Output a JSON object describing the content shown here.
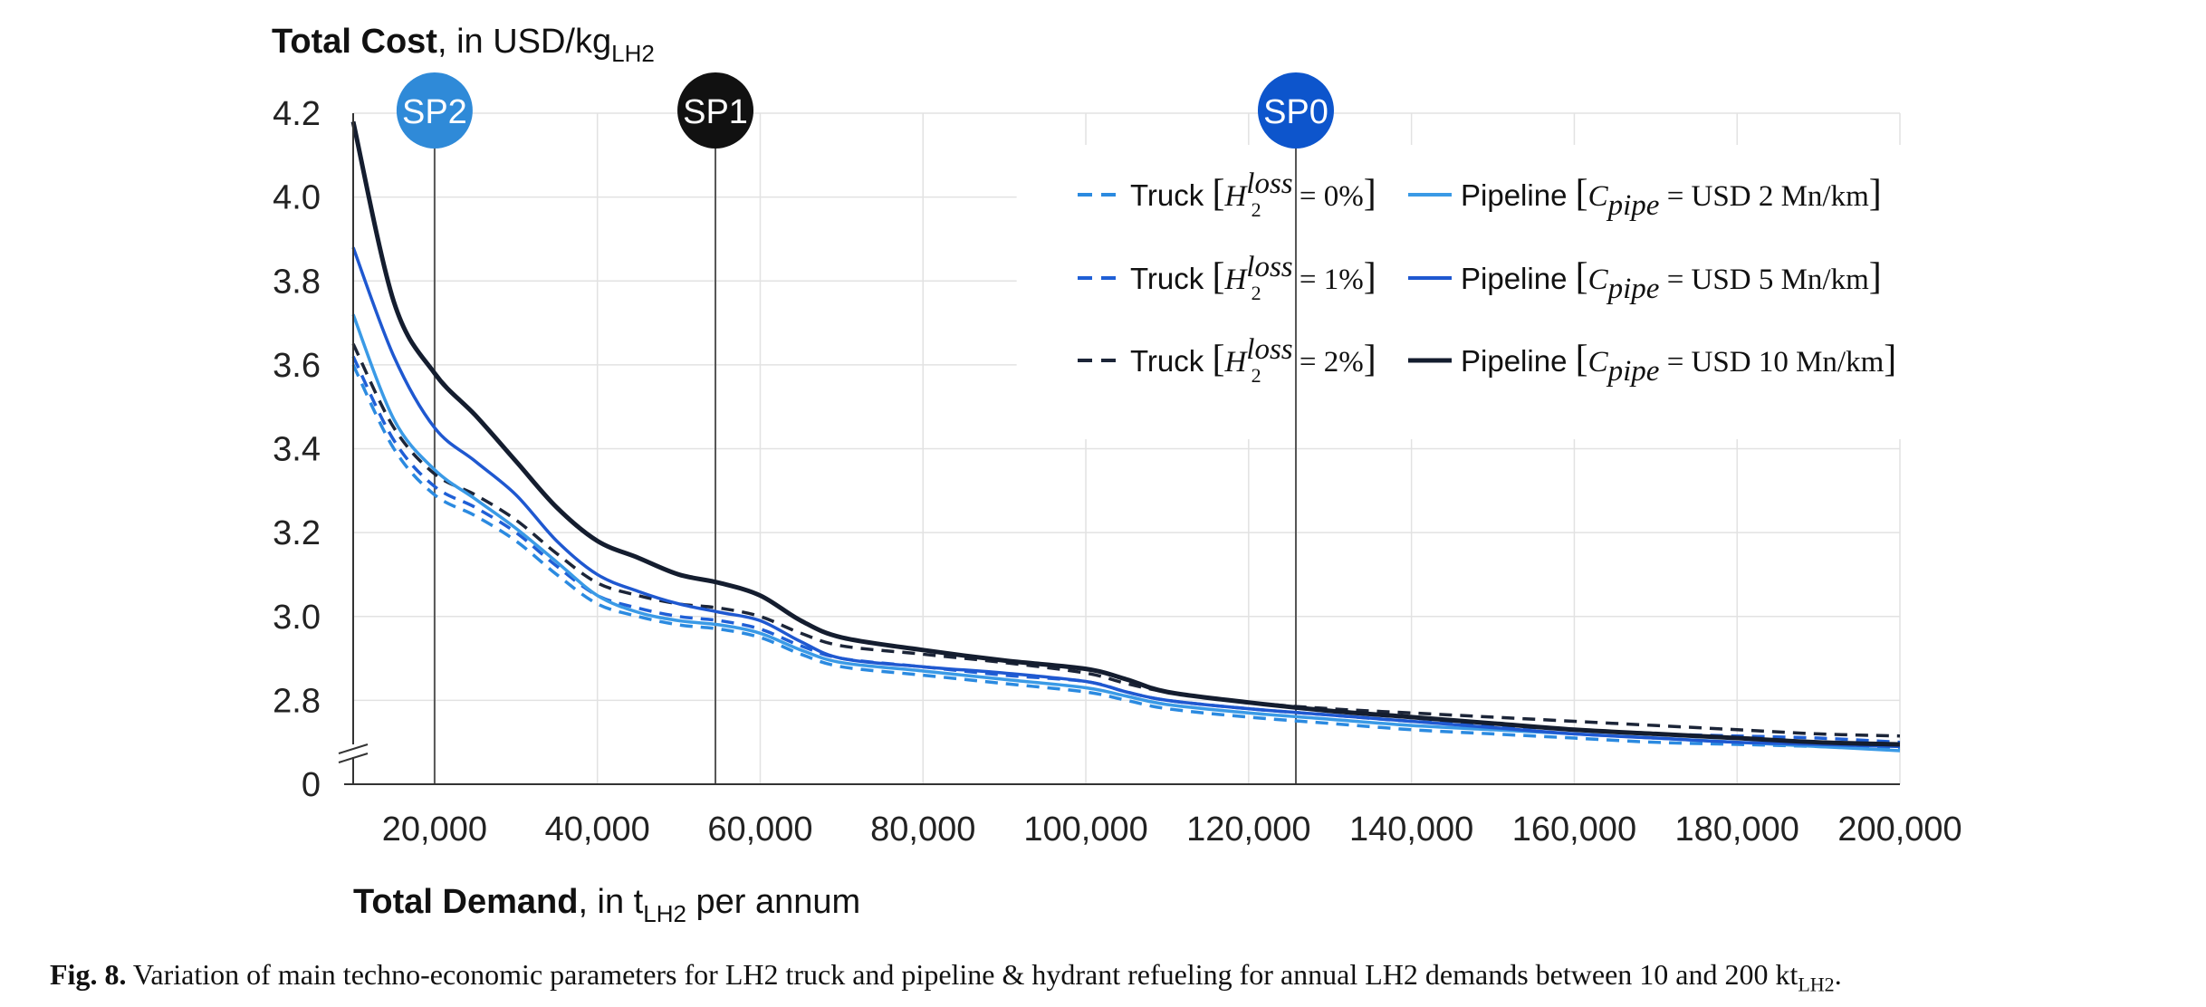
{
  "chart_data": {
    "type": "line",
    "ylabel_bold": "Total Cost",
    "ylabel_rest": ", in USD/kg",
    "ylabel_sub": "LH2",
    "xlabel_bold": "Total Demand",
    "xlabel_rest": ", in t",
    "xlabel_sub": "LH2",
    "xlabel_tail": " per annum",
    "xlim": [
      10000,
      200000
    ],
    "ylim": [
      2.6,
      4.2
    ],
    "y_axis_break": true,
    "y_ticks": [
      "0",
      "2.8",
      "3.0",
      "3.2",
      "3.4",
      "3.6",
      "3.8",
      "4.0",
      "4.2"
    ],
    "y_tick_values": [
      2.6,
      2.8,
      3.0,
      3.2,
      3.4,
      3.6,
      3.8,
      4.0,
      4.2
    ],
    "x_ticks": [
      "20,000",
      "40,000",
      "60,000",
      "80,000",
      "100,000",
      "120,000",
      "140,000",
      "160,000",
      "180,000",
      "200,000"
    ],
    "x_tick_values": [
      20000,
      40000,
      60000,
      80000,
      100000,
      120000,
      140000,
      160000,
      180000,
      200000
    ],
    "grid": true,
    "legend_position": "top-right",
    "switching_points": [
      {
        "label": "SP2",
        "x": 20000,
        "color": "#2f8ad8"
      },
      {
        "label": "SP1",
        "x": 54500,
        "color": "#111111"
      },
      {
        "label": "SP0",
        "x": 125800,
        "color": "#0d55cc"
      }
    ],
    "x": [
      10000,
      15000,
      20000,
      25000,
      30000,
      35000,
      40000,
      45000,
      50000,
      55000,
      60000,
      65000,
      70000,
      80000,
      90000,
      100000,
      105000,
      110000,
      120000,
      130000,
      140000,
      150000,
      160000,
      170000,
      180000,
      190000,
      200000
    ],
    "series": [
      {
        "legend_word": "Truck",
        "legend_sym": "H",
        "legend_sub": "2",
        "legend_sup": "loss",
        "legend_value": " = 0%",
        "color": "#2b8ae0",
        "dash": true,
        "values": [
          3.6,
          3.4,
          3.29,
          3.24,
          3.18,
          3.1,
          3.03,
          3.0,
          2.98,
          2.97,
          2.95,
          2.91,
          2.88,
          2.86,
          2.84,
          2.82,
          2.8,
          2.78,
          2.76,
          2.745,
          2.73,
          2.72,
          2.71,
          2.7,
          2.695,
          2.69,
          2.685
        ]
      },
      {
        "legend_word": "Truck",
        "legend_sym": "H",
        "legend_sub": "2",
        "legend_sup": "loss",
        "legend_value": " = 1%",
        "color": "#1f5fd6",
        "dash": true,
        "values": [
          3.62,
          3.42,
          3.31,
          3.26,
          3.2,
          3.12,
          3.05,
          3.02,
          3.0,
          2.99,
          2.97,
          2.93,
          2.9,
          2.88,
          2.86,
          2.845,
          2.82,
          2.8,
          2.78,
          2.765,
          2.75,
          2.74,
          2.73,
          2.72,
          2.715,
          2.71,
          2.7
        ]
      },
      {
        "legend_word": "Truck",
        "legend_sym": "H",
        "legend_sub": "2",
        "legend_sup": "loss",
        "legend_value": " = 2%",
        "color": "#1c2538",
        "dash": true,
        "values": [
          3.65,
          3.45,
          3.34,
          3.29,
          3.23,
          3.15,
          3.08,
          3.05,
          3.03,
          3.02,
          3.0,
          2.96,
          2.93,
          2.91,
          2.89,
          2.865,
          2.84,
          2.82,
          2.795,
          2.78,
          2.77,
          2.76,
          2.75,
          2.74,
          2.73,
          2.72,
          2.715
        ]
      },
      {
        "legend_word": "Pipeline",
        "legend_sym": "C",
        "legend_sub": "pipe",
        "legend_sup": "",
        "legend_value": " = USD 2 Mn/km",
        "color": "#3a9ae6",
        "dash": false,
        "values": [
          3.72,
          3.47,
          3.35,
          3.28,
          3.21,
          3.13,
          3.05,
          3.01,
          2.99,
          2.98,
          2.96,
          2.92,
          2.89,
          2.87,
          2.85,
          2.83,
          2.81,
          2.79,
          2.77,
          2.755,
          2.74,
          2.73,
          2.72,
          2.71,
          2.7,
          2.69,
          2.68
        ]
      },
      {
        "legend_word": "Pipeline",
        "legend_sym": "C",
        "legend_sub": "pipe",
        "legend_sup": "",
        "legend_value": " = USD 5 Mn/km",
        "color": "#1f58d0",
        "dash": false,
        "values": [
          3.88,
          3.62,
          3.45,
          3.37,
          3.29,
          3.18,
          3.1,
          3.06,
          3.03,
          3.01,
          2.99,
          2.94,
          2.9,
          2.88,
          2.865,
          2.845,
          2.82,
          2.8,
          2.78,
          2.765,
          2.75,
          2.735,
          2.72,
          2.71,
          2.7,
          2.695,
          2.69
        ]
      },
      {
        "legend_word": "Pipeline",
        "legend_sym": "C",
        "legend_sub": "pipe",
        "legend_sup": "",
        "legend_value": " = USD 10 Mn/km",
        "color": "#141d2f",
        "dash": false,
        "values": [
          4.18,
          3.75,
          3.58,
          3.48,
          3.37,
          3.26,
          3.18,
          3.14,
          3.1,
          3.08,
          3.05,
          2.99,
          2.95,
          2.92,
          2.895,
          2.875,
          2.85,
          2.82,
          2.795,
          2.775,
          2.76,
          2.745,
          2.73,
          2.72,
          2.71,
          2.7,
          2.695
        ]
      }
    ]
  },
  "caption": {
    "label": "Fig. 8.",
    "text": " Variation of main techno-economic parameters for LH2 truck and pipeline & hydrant refueling for annual LH2 demands between 10 and 200 kt",
    "sub": "LH2",
    "end": "."
  }
}
